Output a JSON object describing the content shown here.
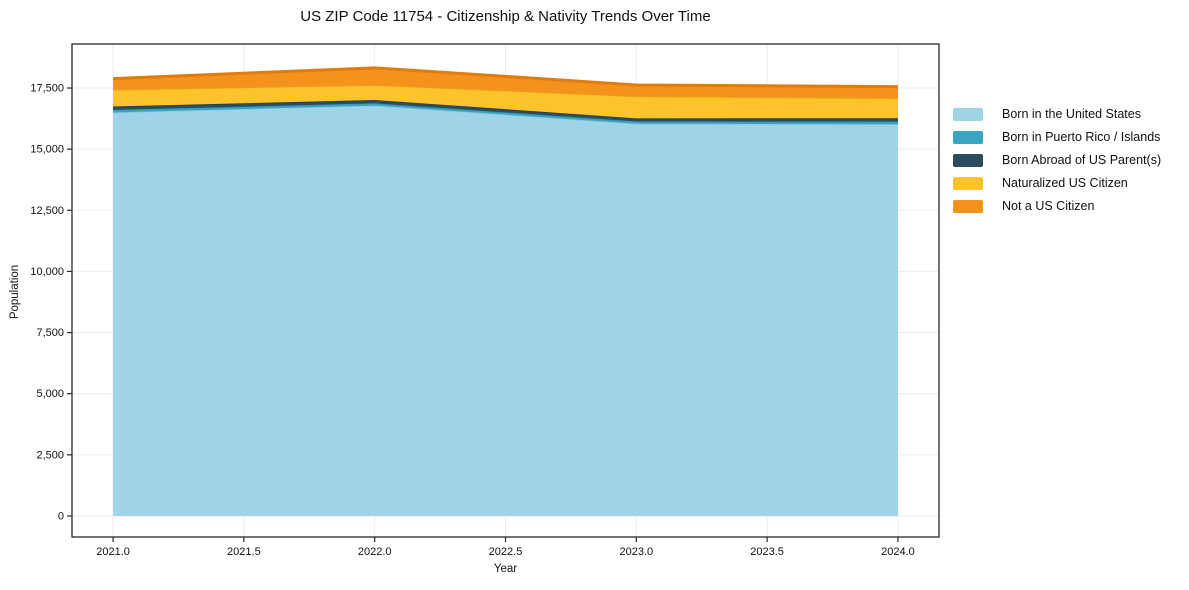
{
  "chart_data": {
    "type": "area",
    "stacked": true,
    "title": "US ZIP Code 11754 - Citizenship & Nativity Trends Over Time",
    "xlabel": "Year",
    "ylabel": "Population",
    "grid": true,
    "legend_position": "right of plot, no frame",
    "x": [
      2021,
      2022,
      2023,
      2024
    ],
    "xlim": [
      2020.843,
      2024.157
    ],
    "ylim": [
      -860,
      19300
    ],
    "series": [
      {
        "id": "born-us",
        "name": "Born in the United States",
        "color": "#9ed3e8",
        "edge_color": "#8ec6de",
        "values": [
          16500,
          16780,
          16040,
          16020
        ]
      },
      {
        "id": "born-pr-islands",
        "name": "Born in Puerto Rico / Islands",
        "color": "#3aa5c1",
        "edge_color": "#2e94ae",
        "values": [
          105,
          95,
          95,
          110
        ]
      },
      {
        "id": "born-abroad",
        "name": "Born Abroad of US Parent(s)",
        "color": "#2c4b5e",
        "edge_color": "#223e4c",
        "values": [
          140,
          135,
          125,
          135
        ]
      },
      {
        "id": "naturalized",
        "name": "Naturalized US Citizen",
        "color": "#fcc32b",
        "edge_color": "#eda01b",
        "values": [
          690,
          620,
          910,
          825
        ]
      },
      {
        "id": "not-citizen",
        "name": "Not a US Citizen",
        "color": "#f5921c",
        "edge_color": "#e07b10",
        "values": [
          450,
          695,
          455,
          465
        ]
      }
    ],
    "totals": [
      17885,
      18325,
      17625,
      17555
    ],
    "xticks": [
      {
        "value": 2021.0,
        "label": "2021.0"
      },
      {
        "value": 2021.5,
        "label": "2021.5"
      },
      {
        "value": 2022.0,
        "label": "2022.0"
      },
      {
        "value": 2022.5,
        "label": "2022.5"
      },
      {
        "value": 2023.0,
        "label": "2023.0"
      },
      {
        "value": 2023.5,
        "label": "2023.5"
      },
      {
        "value": 2024.0,
        "label": "2024.0"
      }
    ],
    "yticks": [
      {
        "value": 0,
        "label": "0"
      },
      {
        "value": 2500,
        "label": "2,500"
      },
      {
        "value": 5000,
        "label": "5,000"
      },
      {
        "value": 7500,
        "label": "7,500"
      },
      {
        "value": 10000,
        "label": "10,000"
      },
      {
        "value": 12500,
        "label": "12,500"
      },
      {
        "value": 15000,
        "label": "15,000"
      },
      {
        "value": 17500,
        "label": "17,500"
      }
    ],
    "colors": {
      "background": "#ffffff",
      "gridline": "#ebebeb",
      "spine": "#2a2a2a",
      "text": "#111111"
    }
  }
}
